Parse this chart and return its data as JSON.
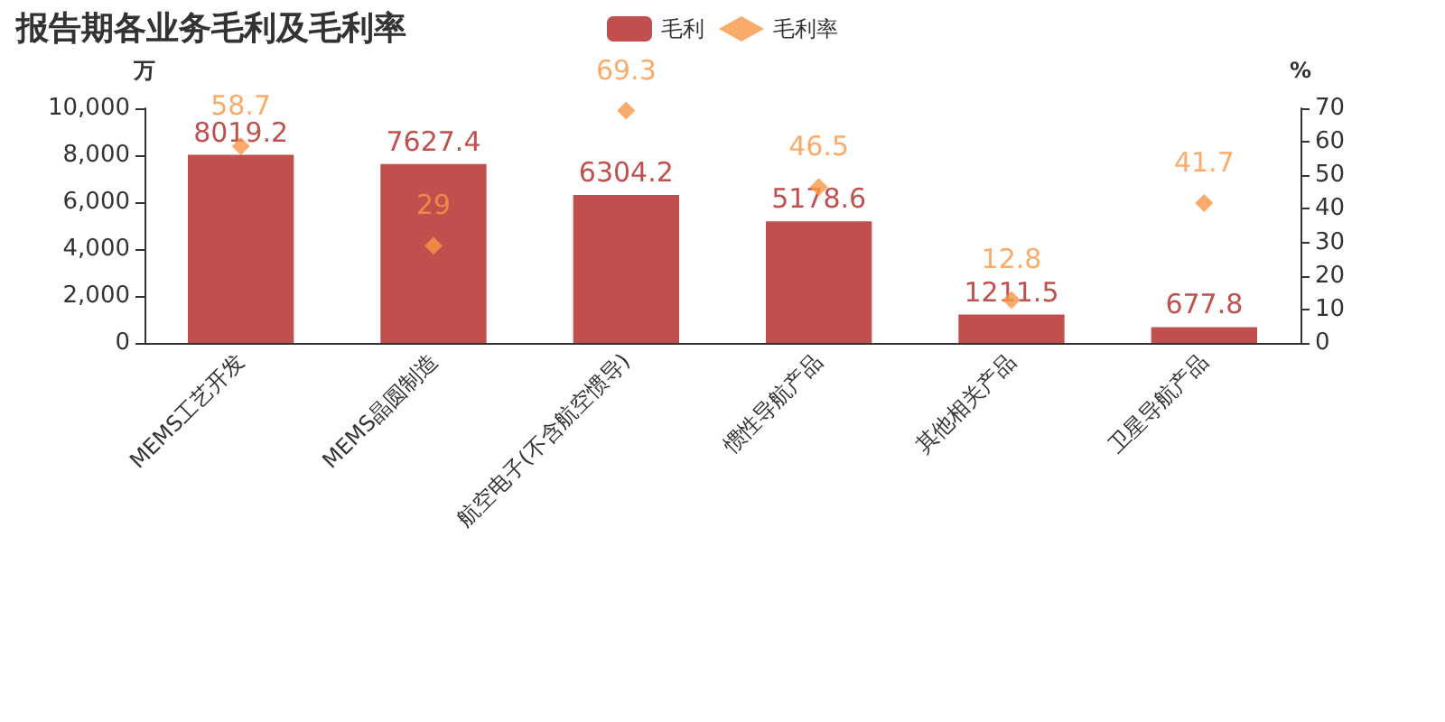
{
  "chart_data": {
    "type": "bar",
    "title": "报告期各业务毛利及毛利率",
    "ylabel": "万",
    "y2label": "%",
    "categories": [
      "MEMS工艺开发",
      "MEMS晶圆制造",
      "航空电子(不含航空惯导)",
      "惯性导航产品",
      "其他相关产品",
      "卫星导航产品"
    ],
    "series": [
      {
        "name": "毛利",
        "color": "#c0504d",
        "values": [
          8019.2,
          7627.4,
          6304.2,
          5178.6,
          1211.5,
          677.8
        ]
      },
      {
        "name": "毛利率",
        "type": "scatter",
        "axis": "y2",
        "color": "#f79646",
        "marker": "diamond",
        "values": [
          58.7,
          29,
          69.3,
          46.5,
          12.8,
          41.7
        ]
      }
    ],
    "ylim": [
      0,
      10000
    ],
    "yticks": [
      0,
      {
        "value": 2000,
        "label": "2,000"
      },
      {
        "value": 4000,
        "label": "4,000"
      },
      {
        "value": 6000,
        "label": "6,000"
      },
      {
        "value": 8000,
        "label": "8,000"
      },
      {
        "value": 10000,
        "label": "10,000"
      }
    ],
    "y2lim": [
      0,
      70
    ],
    "y2ticks": [
      0,
      10,
      20,
      30,
      40,
      50,
      60,
      70
    ],
    "data_labels": true,
    "grid": false,
    "legend": "top"
  }
}
